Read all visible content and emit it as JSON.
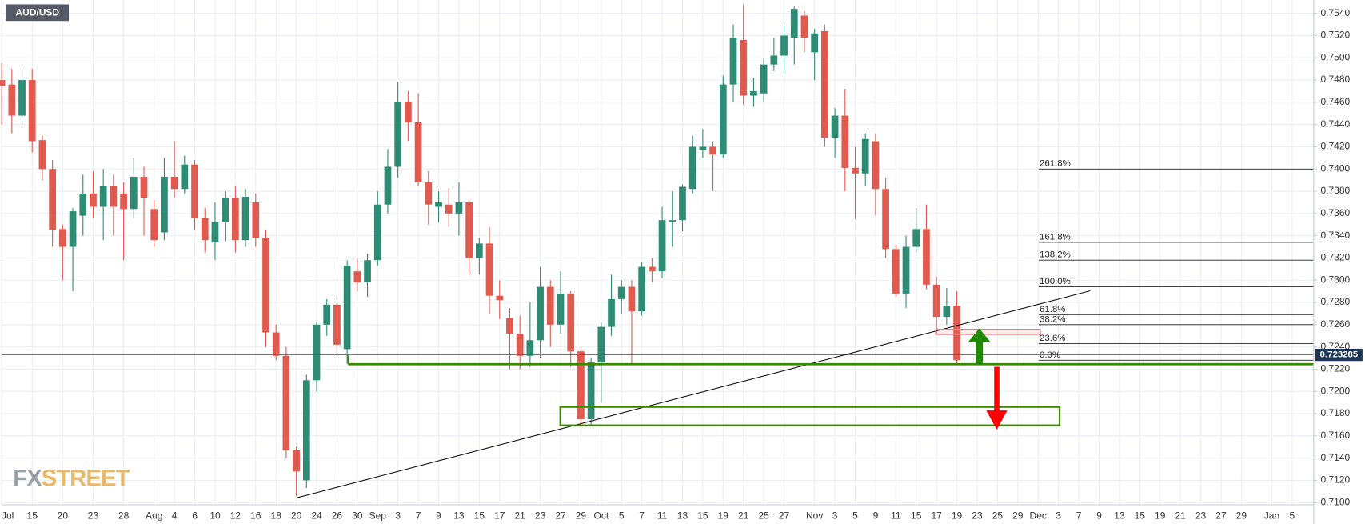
{
  "chart_data": {
    "type": "candlestick",
    "title": "AUD/USD",
    "logo": [
      "FX",
      "STREET"
    ],
    "up_color": "#2e8c74",
    "down_color": "#e05a4f",
    "grid": true,
    "ylim": [
      0.7098,
      0.7552
    ],
    "yticks": [
      {
        "value": 0.71,
        "label": "0.7100"
      },
      {
        "value": 0.712,
        "label": "0.7120"
      },
      {
        "value": 0.714,
        "label": "0.7140"
      },
      {
        "value": 0.716,
        "label": "0.7160"
      },
      {
        "value": 0.718,
        "label": "0.7180"
      },
      {
        "value": 0.72,
        "label": "0.7200"
      },
      {
        "value": 0.722,
        "label": "0.7220"
      },
      {
        "value": 0.724,
        "label": "0.7240"
      },
      {
        "value": 0.726,
        "label": "0.7260"
      },
      {
        "value": 0.728,
        "label": "0.7280"
      },
      {
        "value": 0.73,
        "label": "0.7300"
      },
      {
        "value": 0.732,
        "label": "0.7320"
      },
      {
        "value": 0.734,
        "label": "0.7340"
      },
      {
        "value": 0.736,
        "label": "0.7360"
      },
      {
        "value": 0.738,
        "label": "0.7380"
      },
      {
        "value": 0.74,
        "label": "0.7400"
      },
      {
        "value": 0.742,
        "label": "0.7420"
      },
      {
        "value": 0.744,
        "label": "0.7440"
      },
      {
        "value": 0.746,
        "label": "0.7460"
      },
      {
        "value": 0.748,
        "label": "0.7480"
      },
      {
        "value": 0.75,
        "label": "0.7500"
      },
      {
        "value": 0.752,
        "label": "0.7520"
      },
      {
        "value": 0.754,
        "label": "0.7540"
      }
    ],
    "last_price": 0.723285,
    "fib_levels": [
      {
        "name": "261.8%",
        "price": 0.74
      },
      {
        "name": "161.8%",
        "price": 0.7334
      },
      {
        "name": "138.2%",
        "price": 0.7318
      },
      {
        "name": "100.0%",
        "price": 0.7294
      },
      {
        "name": "61.8%",
        "price": 0.7269
      },
      {
        "name": "38.2%",
        "price": 0.726
      },
      {
        "name": "23.6%",
        "price": 0.7243
      },
      {
        "name": "0.0%",
        "price": 0.7228
      }
    ],
    "categories": [
      "Jul",
      null,
      null,
      "15",
      null,
      null,
      "20",
      null,
      null,
      "23",
      null,
      null,
      "28",
      null,
      null,
      "Aug",
      null,
      "4",
      null,
      "6",
      null,
      "10",
      null,
      "12",
      null,
      "16",
      null,
      "18",
      null,
      "20",
      null,
      "24",
      null,
      "26",
      null,
      "30",
      null,
      "Sep",
      null,
      "3",
      null,
      "7",
      null,
      "9",
      null,
      "13",
      null,
      "15",
      null,
      "17",
      null,
      "21",
      null,
      "23",
      null,
      "27",
      null,
      "29",
      null,
      "Oct",
      null,
      "5",
      null,
      "7",
      null,
      "11",
      null,
      "13",
      null,
      "15",
      null,
      "19",
      null,
      "21",
      null,
      "25",
      null,
      "27",
      null,
      null,
      "Nov",
      null,
      "3",
      null,
      "5",
      null,
      "9",
      null,
      "11",
      null,
      "15",
      null,
      "17",
      null,
      "19",
      null,
      "23",
      null,
      "25",
      null,
      "29",
      null,
      "Dec",
      null,
      "3",
      null,
      "7",
      null,
      "9",
      null,
      "13",
      null,
      "15",
      null,
      "19",
      null,
      "21",
      null,
      "23",
      null,
      "27",
      null,
      "29",
      null,
      null,
      "Jan",
      null,
      "5",
      null
    ],
    "open": [
      0.748,
      0.7476,
      0.7448,
      0.748,
      0.7426,
      0.74,
      0.7346,
      0.733,
      0.7358,
      0.7378,
      0.7366,
      0.7385,
      0.7378,
      0.7364,
      0.7393,
      0.7364,
      0.7343,
      0.7393,
      0.7382,
      0.7404,
      0.7356,
      0.7334,
      0.7352,
      0.7374,
      0.7336,
      0.737,
      0.7338,
      0.7253,
      0.7232,
      0.7147,
      0.712,
      0.721,
      0.726,
      0.7278,
      0.7238,
      0.7308,
      0.7298,
      0.7318,
      0.7368,
      0.7402,
      0.746,
      0.7442,
      0.7388,
      0.7366,
      0.7368,
      0.736,
      0.737,
      0.732,
      0.7333,
      0.7286,
      0.7266,
      0.7252,
      0.7232,
      0.7246,
      0.7294,
      0.726,
      0.7288,
      0.7236,
      0.7175,
      0.7226,
      0.7258,
      0.7283,
      0.7294,
      0.7272,
      0.7312,
      0.7308,
      0.7352,
      0.7354,
      0.7382,
      0.7417,
      0.742,
      0.7413,
      0.7476,
      0.7516,
      0.7466,
      0.7468,
      0.7494,
      0.7502,
      0.7518,
      0.7538,
      0.7505,
      0.7524,
      0.7428,
      0.7448,
      0.7401,
      0.7396,
      0.7425,
      0.7382,
      0.7328,
      0.7288,
      0.733,
      0.7346,
      0.7296,
      0.7267,
      0.7277,
      null,
      null,
      null,
      null,
      null,
      null,
      null,
      null,
      null,
      null,
      null,
      null,
      null,
      null,
      null,
      null,
      null,
      null,
      null,
      null,
      null,
      null,
      null,
      null,
      null,
      null,
      null,
      null,
      null,
      null,
      null,
      null,
      null,
      null
    ],
    "high": [
      0.7495,
      0.749,
      0.7492,
      0.749,
      0.743,
      0.7408,
      0.735,
      0.7365,
      0.7395,
      0.7398,
      0.74,
      0.7395,
      0.7388,
      0.741,
      0.7402,
      0.7372,
      0.741,
      0.7425,
      0.7412,
      0.7408,
      0.7365,
      0.737,
      0.738,
      0.7385,
      0.7382,
      0.7378,
      0.7345,
      0.726,
      0.724,
      0.715,
      0.7215,
      0.7263,
      0.7283,
      0.7285,
      0.7318,
      0.732,
      0.7324,
      0.738,
      0.7418,
      0.7478,
      0.747,
      0.7468,
      0.7398,
      0.738,
      0.7383,
      0.7388,
      0.7372,
      0.7338,
      0.7348,
      0.73,
      0.7275,
      0.7268,
      0.728,
      0.7312,
      0.73,
      0.7308,
      0.729,
      0.724,
      0.723,
      0.7262,
      0.7305,
      0.73,
      0.73,
      0.7316,
      0.732,
      0.7366,
      0.738,
      0.7386,
      0.743,
      0.7436,
      0.7425,
      0.7484,
      0.753,
      0.7548,
      0.7482,
      0.75,
      0.7518,
      0.753,
      0.7546,
      0.7542,
      0.7526,
      0.753,
      0.7455,
      0.7472,
      0.742,
      0.7432,
      0.7432,
      0.7392,
      0.7332,
      0.734,
      0.7365,
      0.7368,
      0.7303,
      0.7293,
      0.729,
      null,
      null,
      null,
      null,
      null,
      null,
      null,
      null,
      null,
      null,
      null,
      null,
      null,
      null,
      null,
      null,
      null,
      null,
      null,
      null,
      null,
      null,
      null,
      null,
      null,
      null,
      null,
      null,
      null,
      null,
      null,
      null,
      null,
      null
    ],
    "low": [
      0.744,
      0.7432,
      0.744,
      0.7415,
      0.739,
      0.733,
      0.73,
      0.729,
      0.734,
      0.7356,
      0.7336,
      0.734,
      0.7318,
      0.7356,
      0.734,
      0.733,
      0.7336,
      0.7374,
      0.7378,
      0.7345,
      0.7325,
      0.7318,
      0.7335,
      0.7325,
      0.733,
      0.733,
      0.724,
      0.7228,
      0.714,
      0.7106,
      0.7113,
      0.72,
      0.725,
      0.7232,
      0.7225,
      0.729,
      0.7285,
      0.7313,
      0.736,
      0.7392,
      0.7425,
      0.7385,
      0.735,
      0.7352,
      0.7348,
      0.734,
      0.7305,
      0.7305,
      0.727,
      0.7265,
      0.722,
      0.722,
      0.7222,
      0.723,
      0.724,
      0.7252,
      0.7222,
      0.717,
      0.717,
      0.719,
      0.725,
      0.727,
      0.7225,
      0.7268,
      0.7298,
      0.7302,
      0.733,
      0.7344,
      0.7378,
      0.741,
      0.738,
      0.741,
      0.746,
      0.7458,
      0.7456,
      0.746,
      0.7488,
      0.7486,
      0.7494,
      0.7505,
      0.748,
      0.742,
      0.741,
      0.738,
      0.7355,
      0.7385,
      0.7358,
      0.732,
      0.7285,
      0.7275,
      0.7325,
      0.7292,
      0.7252,
      0.726,
      0.7224,
      null,
      null,
      null,
      null,
      null,
      null,
      null,
      null,
      null,
      null,
      null,
      null,
      null,
      null,
      null,
      null,
      null,
      null,
      null,
      null,
      null,
      null,
      null,
      null,
      null,
      null,
      null,
      null,
      null,
      null,
      null,
      null,
      null,
      null
    ],
    "close": [
      0.7475,
      0.7448,
      0.748,
      0.7425,
      0.74,
      0.7345,
      0.733,
      0.7362,
      0.7378,
      0.7366,
      0.7385,
      0.7366,
      0.7364,
      0.7393,
      0.7374,
      0.7336,
      0.7393,
      0.7382,
      0.7404,
      0.7356,
      0.7336,
      0.7352,
      0.7374,
      0.7336,
      0.7375,
      0.7338,
      0.7253,
      0.7232,
      0.7147,
      0.7128,
      0.721,
      0.726,
      0.7278,
      0.7242,
      0.7313,
      0.7298,
      0.7318,
      0.7368,
      0.7402,
      0.746,
      0.7442,
      0.7388,
      0.7368,
      0.737,
      0.736,
      0.737,
      0.732,
      0.7333,
      0.7286,
      0.7282,
      0.7252,
      0.7232,
      0.7246,
      0.7294,
      0.726,
      0.7288,
      0.7236,
      0.7175,
      0.7226,
      0.7258,
      0.7283,
      0.7294,
      0.7272,
      0.7312,
      0.7308,
      0.7354,
      0.7354,
      0.7384,
      0.742,
      0.742,
      0.7413,
      0.7476,
      0.7518,
      0.7466,
      0.747,
      0.7494,
      0.7502,
      0.752,
      0.7544,
      0.7518,
      0.7522,
      0.7428,
      0.7448,
      0.7401,
      0.7396,
      0.7427,
      0.7382,
      0.7328,
      0.7288,
      0.733,
      0.7346,
      0.7296,
      0.7267,
      0.7277,
      0.7228,
      null,
      null,
      null,
      null,
      null,
      null,
      null,
      null,
      null,
      null,
      null,
      null,
      null,
      null,
      null,
      null,
      null,
      null,
      null,
      null,
      null,
      null,
      null,
      null,
      null,
      null,
      null,
      null,
      null,
      null,
      null,
      null,
      null,
      null
    ]
  }
}
